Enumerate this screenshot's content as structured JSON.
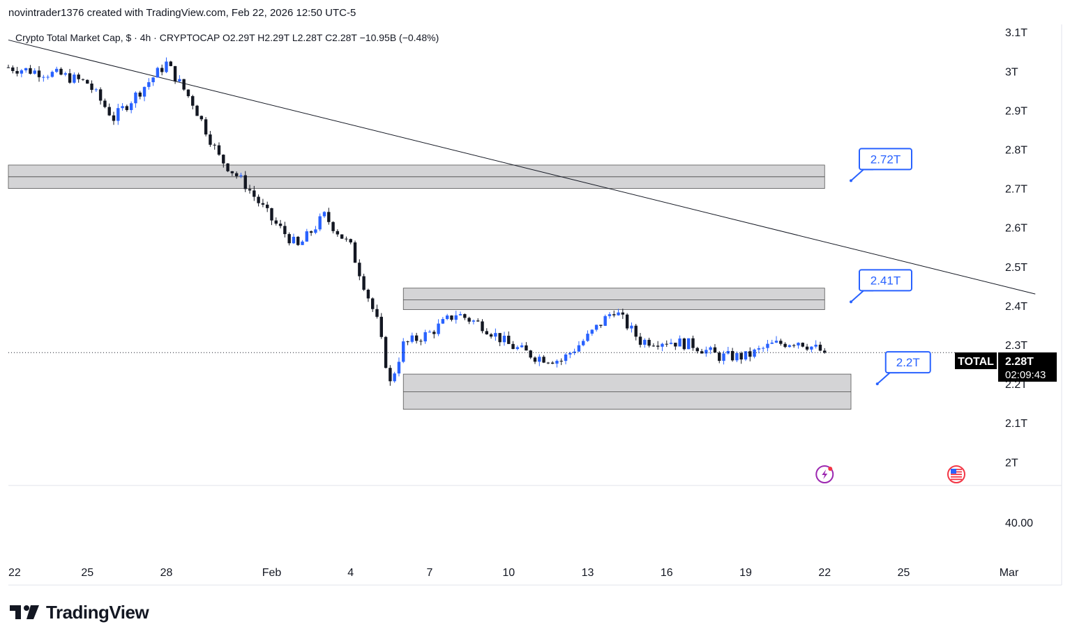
{
  "header": {
    "attribution": "novintrader1376 created with TradingView.com, Feb 22, 2026 12:50 UTC-5"
  },
  "legend": {
    "text": "Crypto Total Market Cap, $ · 4h · CRYPTOCAP  O2.29T  H2.29T  L2.28T  C2.28T  −10.95B (−0.48%)"
  },
  "price_tag": {
    "symbol": "TOTAL",
    "price": "2.28T",
    "countdown": "02:09:43"
  },
  "lower_pane": {
    "value_label": "40.00"
  },
  "brand": {
    "name": "TradingView"
  },
  "colors": {
    "up": "#2962ff",
    "down": "#131722",
    "zone": "#d4d4d6",
    "callout": "#2962ff",
    "text": "#131722"
  },
  "chart_data": {
    "type": "candlestick",
    "symbol": "CRYPTOCAP:TOTAL",
    "interval": "4h",
    "y_unit": "T",
    "ylim": [
      1.94,
      3.12
    ],
    "y_ticks": [
      {
        "value": 3.1,
        "label": "3.1T"
      },
      {
        "value": 3.0,
        "label": "3T"
      },
      {
        "value": 2.9,
        "label": "2.9T"
      },
      {
        "value": 2.8,
        "label": "2.8T"
      },
      {
        "value": 2.7,
        "label": "2.7T"
      },
      {
        "value": 2.6,
        "label": "2.6T"
      },
      {
        "value": 2.5,
        "label": "2.5T"
      },
      {
        "value": 2.4,
        "label": "2.4T"
      },
      {
        "value": 2.3,
        "label": "2.3T"
      },
      {
        "value": 2.2,
        "label": "2.2T"
      },
      {
        "value": 2.1,
        "label": "2.1T"
      },
      {
        "value": 2.0,
        "label": "2T"
      }
    ],
    "xlim": [
      "2026-01-22",
      "2026-03-03"
    ],
    "x_ticks": [
      {
        "date": "2026-01-22",
        "label": "22"
      },
      {
        "date": "2026-01-25",
        "label": "25"
      },
      {
        "date": "2026-01-28",
        "label": "28"
      },
      {
        "date": "2026-02-01",
        "label": "Feb"
      },
      {
        "date": "2026-02-04",
        "label": "4"
      },
      {
        "date": "2026-02-07",
        "label": "7"
      },
      {
        "date": "2026-02-10",
        "label": "10"
      },
      {
        "date": "2026-02-13",
        "label": "13"
      },
      {
        "date": "2026-02-16",
        "label": "16"
      },
      {
        "date": "2026-02-19",
        "label": "19"
      },
      {
        "date": "2026-02-22",
        "label": "22"
      },
      {
        "date": "2026-02-25",
        "label": "25"
      },
      {
        "date": "2026-03-01",
        "label": "Mar"
      }
    ],
    "last_close": 2.28,
    "trendline": {
      "start": {
        "date": "2026-01-22",
        "value": 3.08
      },
      "end": {
        "date": "2026-03-02",
        "value": 2.43
      }
    },
    "zones": [
      {
        "start": "2026-01-22",
        "end": "2026-02-22",
        "low": 2.7,
        "high": 2.76,
        "mid": 2.73,
        "label": "2.72T"
      },
      {
        "start": "2026-02-06",
        "end": "2026-02-22",
        "low": 2.39,
        "high": 2.445,
        "mid": 2.415,
        "label": "2.41T"
      },
      {
        "start": "2026-02-06",
        "end": "2026-02-23",
        "low": 2.135,
        "high": 2.225,
        "mid": 2.18,
        "label": "2.2T"
      }
    ],
    "callouts": [
      {
        "label": "2.72T",
        "date": "2026-02-23",
        "value": 2.72
      },
      {
        "label": "2.41T",
        "date": "2026-02-23",
        "value": 2.41
      },
      {
        "label": "2.2T",
        "date": "2026-02-24",
        "value": 2.2
      }
    ],
    "events": [
      {
        "type": "flash-event",
        "date": "2026-02-22"
      },
      {
        "type": "us-economic-event",
        "date": "2026-02-27"
      }
    ],
    "ohlc_waypoints": [
      {
        "date": "2026-01-22",
        "close": 3.01
      },
      {
        "date": "2026-01-23",
        "close": 3.0
      },
      {
        "date": "2026-01-24",
        "close": 2.99
      },
      {
        "date": "2026-01-25",
        "close": 2.97
      },
      {
        "date": "2026-01-26",
        "close": 2.88
      },
      {
        "date": "2026-01-27",
        "close": 2.95
      },
      {
        "date": "2026-01-28",
        "close": 3.02
      },
      {
        "date": "2026-01-29",
        "close": 2.92
      },
      {
        "date": "2026-01-30",
        "close": 2.78
      },
      {
        "date": "2026-01-31",
        "close": 2.71
      },
      {
        "date": "2026-02-01",
        "close": 2.62
      },
      {
        "date": "2026-02-02",
        "close": 2.55
      },
      {
        "date": "2026-02-03",
        "close": 2.63
      },
      {
        "date": "2026-02-04",
        "close": 2.55
      },
      {
        "date": "2026-02-05",
        "close": 2.36
      },
      {
        "date": "2026-02-05T12:00",
        "close": 2.2
      },
      {
        "date": "2026-02-06",
        "close": 2.3
      },
      {
        "date": "2026-02-07",
        "close": 2.33
      },
      {
        "date": "2026-02-08",
        "close": 2.38
      },
      {
        "date": "2026-02-09",
        "close": 2.35
      },
      {
        "date": "2026-02-10",
        "close": 2.3
      },
      {
        "date": "2026-02-11",
        "close": 2.27
      },
      {
        "date": "2026-02-12",
        "close": 2.26
      },
      {
        "date": "2026-02-13",
        "close": 2.32
      },
      {
        "date": "2026-02-14",
        "close": 2.39
      },
      {
        "date": "2026-02-15",
        "close": 2.31
      },
      {
        "date": "2026-02-16",
        "close": 2.31
      },
      {
        "date": "2026-02-17",
        "close": 2.3
      },
      {
        "date": "2026-02-18",
        "close": 2.27
      },
      {
        "date": "2026-02-19",
        "close": 2.27
      },
      {
        "date": "2026-02-20",
        "close": 2.3
      },
      {
        "date": "2026-02-21",
        "close": 2.31
      },
      {
        "date": "2026-02-22",
        "close": 2.28
      }
    ]
  }
}
